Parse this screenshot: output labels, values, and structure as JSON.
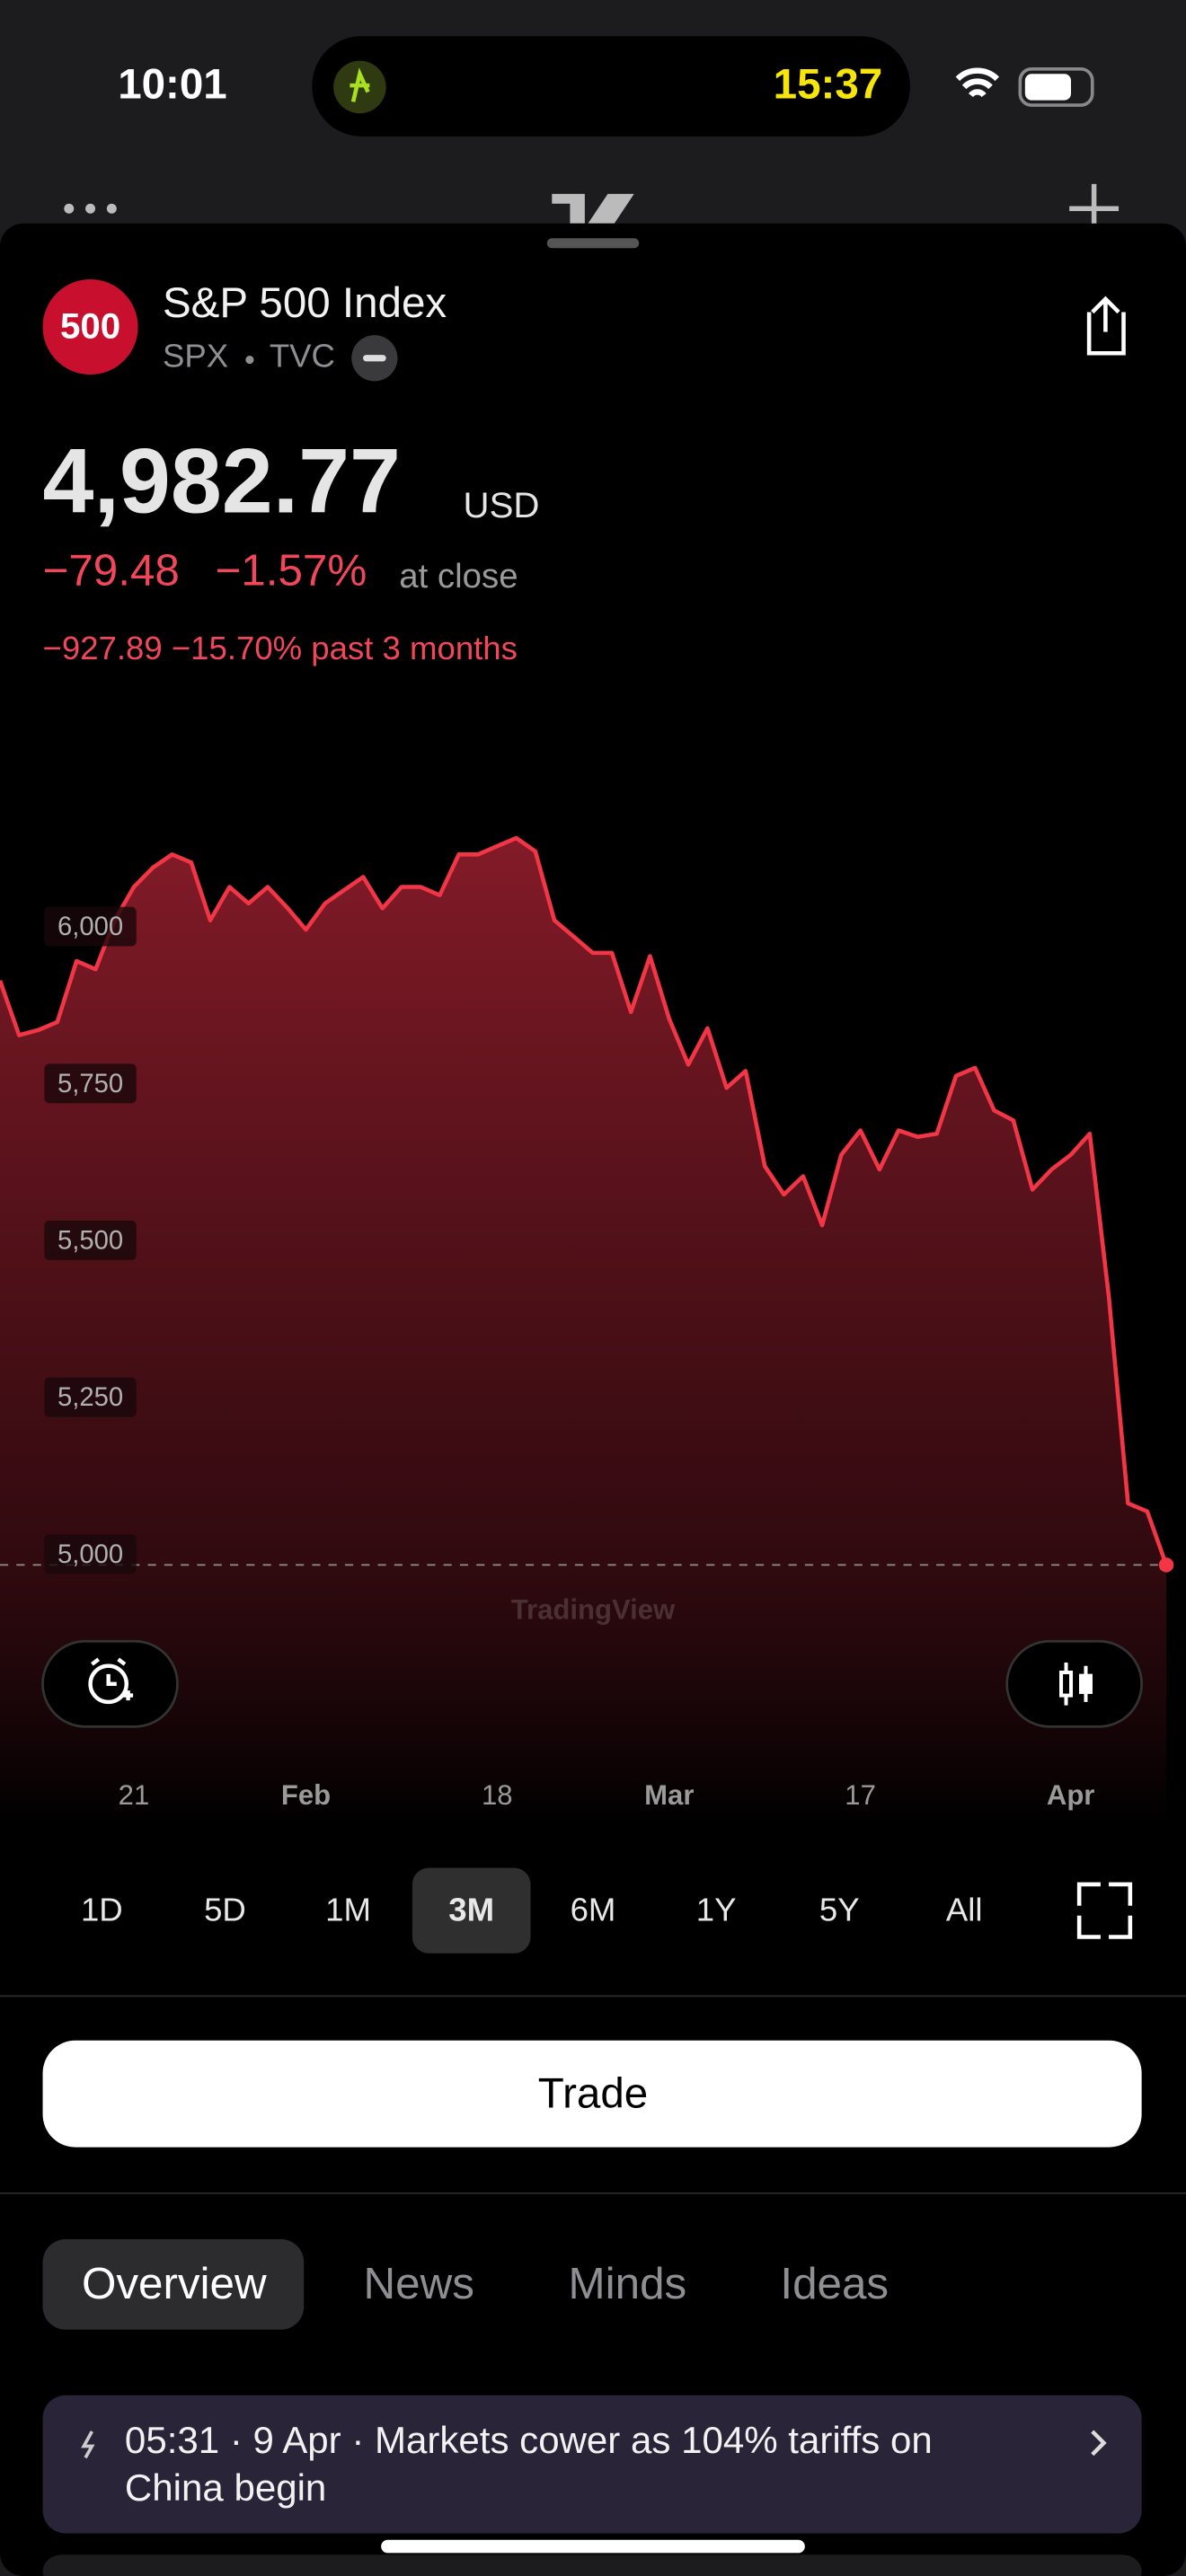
{
  "status_bar": {
    "time": "10:01",
    "activity_time": "15:37"
  },
  "header": {
    "badge": "500",
    "name": "S&P 500 Index",
    "ticker": "SPX",
    "exchange": "TVC",
    "price": "4,982.77",
    "currency": "USD",
    "change": "−79.48",
    "change_pct": "−1.57%",
    "change_note": "at close",
    "period_change": "−927.89 −15.70% past 3 months"
  },
  "chart_data": {
    "type": "area",
    "color": "#f23645",
    "watermark": "TradingView",
    "categories": [
      null,
      null,
      null,
      null,
      null,
      null,
      null,
      "21",
      null,
      null,
      null,
      null,
      null,
      null,
      null,
      null,
      "Feb",
      null,
      null,
      null,
      null,
      null,
      null,
      null,
      null,
      null,
      "18",
      null,
      null,
      null,
      null,
      null,
      null,
      null,
      null,
      "Mar",
      null,
      null,
      null,
      null,
      null,
      null,
      null,
      null,
      null,
      "17",
      null,
      null,
      null,
      null,
      null,
      null,
      null,
      null,
      null,
      null,
      "Apr",
      null,
      null,
      null,
      null,
      null
    ],
    "values": [
      5914,
      5827,
      5835,
      5848,
      5945,
      5932,
      6010,
      6063,
      6094,
      6115,
      6102,
      6010,
      6063,
      6037,
      6063,
      6031,
      5995,
      6037,
      6058,
      6079,
      6029,
      6063,
      6063,
      6050,
      6115,
      6115,
      6128,
      6141,
      6120,
      6010,
      5984,
      5958,
      5958,
      5864,
      5953,
      5853,
      5780,
      5838,
      5743,
      5770,
      5618,
      5573,
      5602,
      5524,
      5636,
      5675,
      5613,
      5675,
      5665,
      5670,
      5762,
      5775,
      5707,
      5691,
      5581,
      5613,
      5636,
      5670,
      5408,
      5081,
      5068,
      4982.77
    ],
    "ylim": [
      4600,
      6300
    ],
    "yticks": [
      {
        "value": 5000,
        "label": "5,000"
      },
      {
        "value": 5250,
        "label": "5,250"
      },
      {
        "value": 5500,
        "label": "5,500"
      },
      {
        "value": 5750,
        "label": "5,750"
      },
      {
        "value": 6000,
        "label": "6,000"
      }
    ]
  },
  "ranges": [
    "1D",
    "5D",
    "1M",
    "3M",
    "6M",
    "1Y",
    "5Y",
    "All"
  ],
  "selected_range": "3M",
  "trade_button": "Trade",
  "tabs": [
    "Overview",
    "News",
    "Minds",
    "Ideas"
  ],
  "selected_tab": "Overview",
  "news": {
    "lines": [
      "05:31 · 9 Apr · Markets cower as 104% tariffs on",
      "China begin"
    ]
  }
}
